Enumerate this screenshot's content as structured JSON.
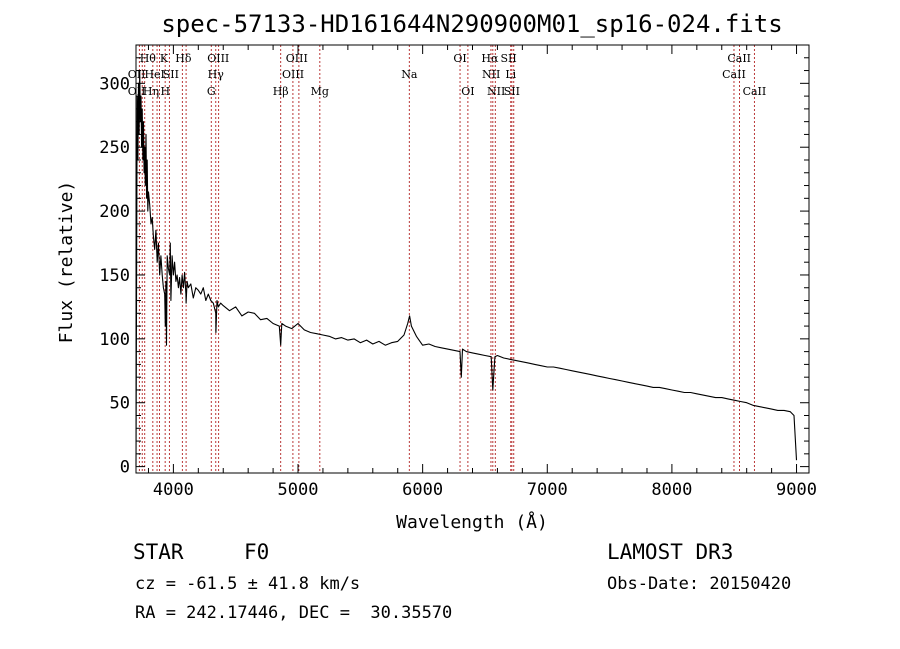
{
  "chart_data": {
    "type": "line",
    "title": "spec-57133-HD161644N290900M01_sp16-024.fits",
    "xlabel": "Wavelength (Å)",
    "ylabel": "Flux (relative)",
    "xlim": [
      3700,
      9100
    ],
    "ylim": [
      -5,
      330
    ],
    "xticks": [
      4000,
      5000,
      6000,
      7000,
      8000,
      9000
    ],
    "yticks": [
      0,
      50,
      100,
      150,
      200,
      250,
      300
    ],
    "series": [
      {
        "name": "spectrum",
        "x": [
          3700,
          3705,
          3710,
          3715,
          3720,
          3725,
          3730,
          3735,
          3740,
          3745,
          3750,
          3755,
          3760,
          3765,
          3770,
          3775,
          3780,
          3785,
          3790,
          3795,
          3800,
          3810,
          3820,
          3830,
          3840,
          3850,
          3860,
          3870,
          3880,
          3890,
          3900,
          3910,
          3920,
          3930,
          3935,
          3940,
          3945,
          3950,
          3960,
          3970,
          3975,
          3980,
          3990,
          4000,
          4010,
          4020,
          4030,
          4040,
          4050,
          4060,
          4070,
          4080,
          4090,
          4100,
          4102,
          4110,
          4120,
          4140,
          4160,
          4180,
          4200,
          4220,
          4240,
          4260,
          4280,
          4300,
          4320,
          4340,
          4341,
          4350,
          4360,
          4380,
          4400,
          4450,
          4500,
          4550,
          4600,
          4650,
          4700,
          4750,
          4800,
          4850,
          4861,
          4870,
          4900,
          4950,
          5000,
          5050,
          5100,
          5150,
          5200,
          5250,
          5300,
          5350,
          5400,
          5450,
          5500,
          5550,
          5600,
          5650,
          5700,
          5750,
          5800,
          5850,
          5880,
          5895,
          5910,
          5950,
          6000,
          6050,
          6100,
          6150,
          6200,
          6250,
          6300,
          6310,
          6320,
          6350,
          6400,
          6450,
          6500,
          6550,
          6563,
          6580,
          6600,
          6650,
          6700,
          6750,
          6800,
          6850,
          6900,
          6950,
          7000,
          7050,
          7100,
          7150,
          7200,
          7250,
          7300,
          7350,
          7400,
          7450,
          7500,
          7550,
          7600,
          7650,
          7700,
          7750,
          7800,
          7850,
          7900,
          7950,
          8000,
          8050,
          8100,
          8150,
          8200,
          8250,
          8300,
          8350,
          8400,
          8450,
          8500,
          8550,
          8600,
          8650,
          8700,
          8750,
          8800,
          8850,
          8900,
          8950,
          8980,
          9000
        ],
        "y": [
          0,
          150,
          290,
          240,
          300,
          260,
          310,
          270,
          290,
          250,
          280,
          240,
          270,
          230,
          250,
          220,
          260,
          210,
          240,
          200,
          215,
          205,
          190,
          195,
          180,
          170,
          185,
          160,
          175,
          150,
          165,
          150,
          140,
          135,
          110,
          145,
          95,
          165,
          155,
          150,
          175,
          130,
          165,
          150,
          160,
          145,
          150,
          140,
          148,
          135,
          150,
          140,
          152,
          135,
          128,
          145,
          140,
          143,
          132,
          140,
          138,
          135,
          140,
          130,
          135,
          130,
          128,
          120,
          105,
          130,
          125,
          128,
          126,
          122,
          125,
          118,
          121,
          120,
          115,
          116,
          112,
          110,
          95,
          112,
          110,
          108,
          112,
          107,
          105,
          104,
          103,
          102,
          100,
          101,
          99,
          100,
          97,
          99,
          96,
          98,
          95,
          97,
          98,
          103,
          112,
          118,
          110,
          102,
          95,
          96,
          94,
          93,
          92,
          91,
          90,
          70,
          92,
          90,
          89,
          88,
          87,
          86,
          60,
          86,
          87,
          85,
          84,
          83,
          82,
          81,
          80,
          79,
          78,
          78,
          77,
          76,
          75,
          74,
          73,
          72,
          71,
          70,
          69,
          68,
          67,
          66,
          65,
          64,
          63,
          62,
          62,
          61,
          60,
          59,
          58,
          58,
          57,
          56,
          55,
          54,
          54,
          53,
          52,
          51,
          50,
          48,
          47,
          46,
          45,
          44,
          44,
          43,
          40,
          5
        ]
      }
    ],
    "reference_lines": [
      {
        "wavelength": 3727,
        "labels": [
          "OII"
        ]
      },
      {
        "wavelength": 3750,
        "labels": [
          "Hθ",
          "OII"
        ]
      },
      {
        "wavelength": 3770,
        "labels": [
          "Hη"
        ]
      },
      {
        "wavelength": 3835,
        "labels": [
          "K"
        ]
      },
      {
        "wavelength": 3869,
        "labels": [
          "HeI"
        ]
      },
      {
        "wavelength": 3889,
        "labels": [
          "H"
        ]
      },
      {
        "wavelength": 3934,
        "labels": [
          "K"
        ]
      },
      {
        "wavelength": 3968,
        "labels": [
          "H"
        ]
      },
      {
        "wavelength": 4072,
        "labels": [
          "SII"
        ]
      },
      {
        "wavelength": 4102,
        "labels": [
          "Hδ"
        ]
      },
      {
        "wavelength": 4304,
        "labels": [
          "G"
        ]
      },
      {
        "wavelength": 4340,
        "labels": [
          "Hγ"
        ]
      },
      {
        "wavelength": 4363,
        "labels": [
          "OIII"
        ]
      },
      {
        "wavelength": 4861,
        "labels": [
          "Hβ"
        ]
      },
      {
        "wavelength": 4959,
        "labels": [
          "OIII"
        ]
      },
      {
        "wavelength": 5007,
        "labels": [
          "OIII"
        ]
      },
      {
        "wavelength": 5175,
        "labels": [
          "Mg"
        ]
      },
      {
        "wavelength": 5893,
        "labels": [
          "Na"
        ]
      },
      {
        "wavelength": 6300,
        "labels": [
          "OI"
        ]
      },
      {
        "wavelength": 6363,
        "labels": [
          "OI"
        ]
      },
      {
        "wavelength": 6548,
        "labels": [
          "NII"
        ]
      },
      {
        "wavelength": 6563,
        "labels": [
          "Hα"
        ]
      },
      {
        "wavelength": 6583,
        "labels": [
          "NII"
        ]
      },
      {
        "wavelength": 6707,
        "labels": [
          "Li"
        ]
      },
      {
        "wavelength": 6716,
        "labels": [
          "SII"
        ]
      },
      {
        "wavelength": 6731,
        "labels": [
          "SII"
        ]
      },
      {
        "wavelength": 8498,
        "labels": [
          "CaII"
        ]
      },
      {
        "wavelength": 8542,
        "labels": [
          "CaII"
        ]
      },
      {
        "wavelength": 8662,
        "labels": [
          "CaII"
        ]
      }
    ],
    "reference_labels_row1": [
      {
        "text": "Hθ",
        "wavelength": 3795
      },
      {
        "text": "K",
        "wavelength": 3925
      },
      {
        "text": "Hδ",
        "wavelength": 4080
      },
      {
        "text": "OIII",
        "wavelength": 4360
      },
      {
        "text": "OIII",
        "wavelength": 4990
      },
      {
        "text": "OI",
        "wavelength": 6300
      },
      {
        "text": "Hα",
        "wavelength": 6540
      },
      {
        "text": "SII",
        "wavelength": 6690
      },
      {
        "text": "CaII",
        "wavelength": 8540
      }
    ],
    "reference_labels_row2": [
      {
        "text": "OII",
        "wavelength": 3705
      },
      {
        "text": "HeI",
        "wavelength": 3850
      },
      {
        "text": "SII",
        "wavelength": 3980
      },
      {
        "text": "Hγ",
        "wavelength": 4340
      },
      {
        "text": "OIII",
        "wavelength": 4960
      },
      {
        "text": "Na",
        "wavelength": 5893
      },
      {
        "text": "NII",
        "wavelength": 6550
      },
      {
        "text": "Li",
        "wavelength": 6707
      },
      {
        "text": "CaII",
        "wavelength": 8498
      }
    ],
    "reference_labels_row3": [
      {
        "text": "OII",
        "wavelength": 3705
      },
      {
        "text": "Hη",
        "wavelength": 3820
      },
      {
        "text": "H",
        "wavelength": 3935
      },
      {
        "text": "G",
        "wavelength": 4304
      },
      {
        "text": "Hβ",
        "wavelength": 4861
      },
      {
        "text": "Mg",
        "wavelength": 5175
      },
      {
        "text": "OI",
        "wavelength": 6363
      },
      {
        "text": "NII",
        "wavelength": 6590
      },
      {
        "text": "SII",
        "wavelength": 6716
      },
      {
        "text": "CaII",
        "wavelength": 8662
      }
    ],
    "colors": {
      "spectrum": "#000000",
      "reference_line": "#b22222",
      "frame": "#000000"
    }
  },
  "info": {
    "object_type": "STAR",
    "spectral_class": "F0",
    "survey": "LAMOST DR3",
    "redshift": "cz = -61.5 ± 41.8 km/s",
    "obs_date": "Obs-Date: 20150420",
    "coordinates": "RA = 242.17446, DEC =  30.35570"
  }
}
